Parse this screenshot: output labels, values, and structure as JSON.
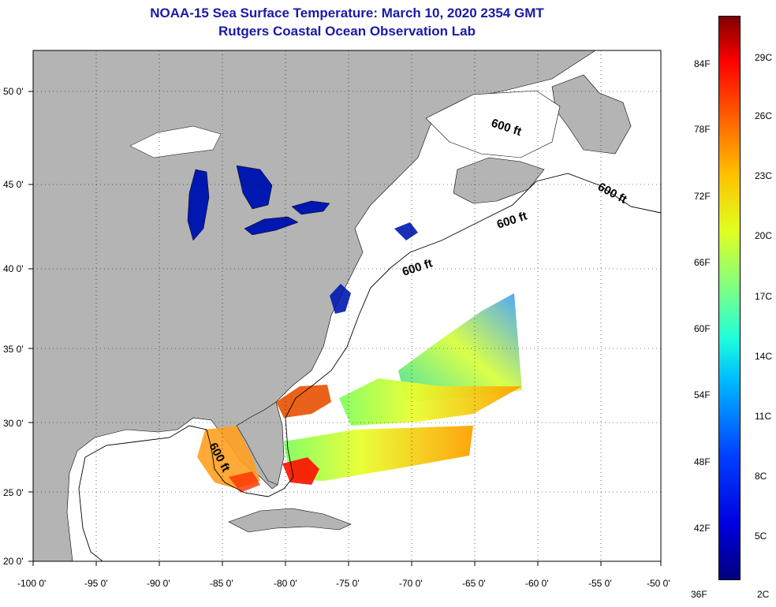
{
  "title_line1": "NOAA-15 Sea Surface Temperature:  March 10, 2020 2354 GMT",
  "title_line2": "Rutgers Coastal Ocean Observation Lab",
  "lat_labels": [
    "50 0'",
    "45 0'",
    "40 0'",
    "35 0'",
    "30 0'",
    "25 0'",
    "20 0'"
  ],
  "lon_labels": [
    "-100 0'",
    "-95 0'",
    "-90 0'",
    "-85 0'",
    "-80 0'",
    "-75 0'",
    "-70 0'",
    "-65 0'",
    "-60 0'",
    "-55 0'",
    "-50 0'"
  ],
  "contour_label": "600 ft",
  "colorbar": {
    "fahrenheit": [
      "84F",
      "78F",
      "72F",
      "66F",
      "60F",
      "54F",
      "48F",
      "42F",
      "36F"
    ],
    "celsius": [
      "29C",
      "26C",
      "23C",
      "20C",
      "17C",
      "14C",
      "11C",
      "8C",
      "5C",
      "2C"
    ]
  },
  "colors": {
    "land": "#b4b4b4",
    "title": "#1a1aa8",
    "water_cold": "#0018b0",
    "water_warm": "#ff2000"
  }
}
